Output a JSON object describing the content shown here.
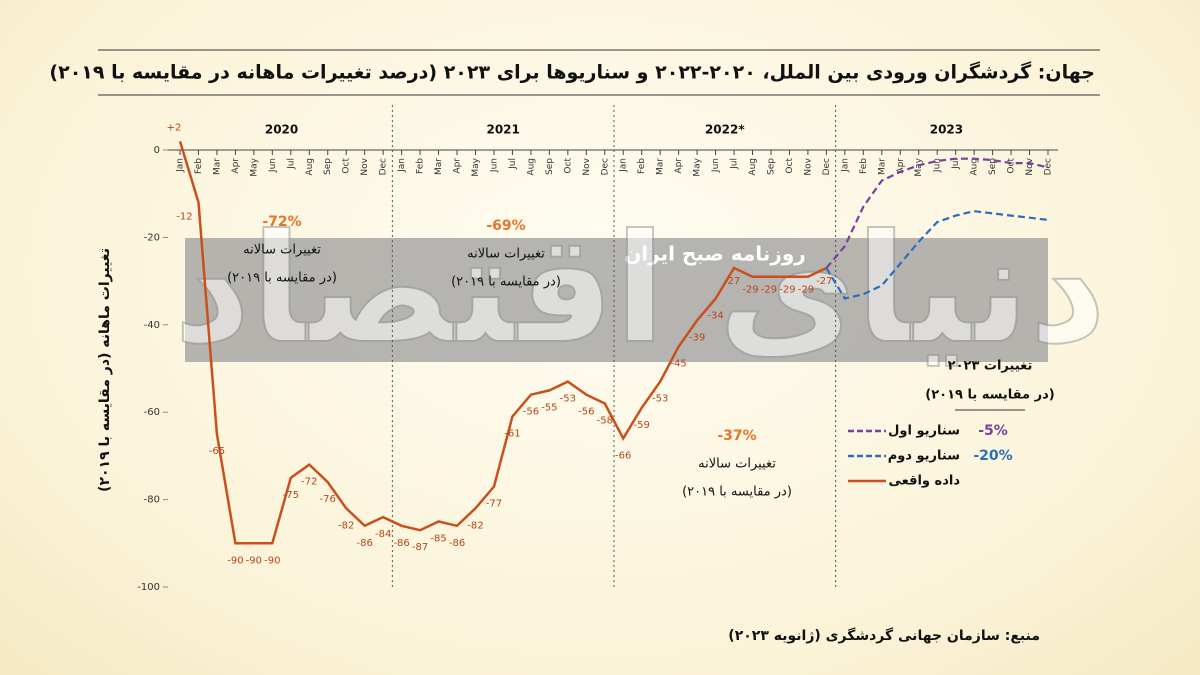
{
  "chart_data": {
    "type": "line",
    "title": "جهان: گردشگران ورودی بین الملل، ۲۰۲۰-۲۰۲۲ و سناریوها برای ۲۰۲۳ (درصد تغییرات ماهانه در مقایسه با ۲۰۱۹)",
    "y_label": "تغییرات ماهانه (در مقایسه با ۲۰۱۹)",
    "years": [
      "2020",
      "2021",
      "2022*",
      "2023"
    ],
    "categories": [
      "Jan",
      "Feb",
      "Mar",
      "Apr",
      "May",
      "Jun",
      "Jul",
      "Aug",
      "Sep",
      "Oct",
      "Nov",
      "Dec",
      "Jan",
      "Feb",
      "Mar",
      "Apr",
      "May",
      "Jun",
      "Jul",
      "Aug",
      "Sep",
      "Oct",
      "Nov",
      "Dec",
      "Jan",
      "Feb",
      "Mar",
      "Apr",
      "May",
      "Jun",
      "Jul",
      "Aug",
      "Sep",
      "Oct",
      "Nov",
      "Dec",
      "Jan",
      "Feb",
      "Mar",
      "Apr",
      "May",
      "Jun",
      "Jul",
      "Aug",
      "Sep",
      "Oct",
      "Nov",
      "Dec"
    ],
    "ylim": [
      -100,
      0
    ],
    "yticks": [
      0,
      -20,
      -40,
      -60,
      -80,
      -100
    ],
    "grid": false,
    "series": [
      {
        "name": "داده واقعی",
        "color": "#c9501c",
        "dash": "solid",
        "values": [
          2,
          -12,
          -65,
          -90,
          -90,
          -90,
          -75,
          -72,
          -76,
          -82,
          -86,
          -84,
          -86,
          -87,
          -85,
          -86,
          -82,
          -77,
          -61,
          -56,
          -55,
          -53,
          -56,
          -58,
          -66,
          -59,
          -53,
          -45,
          -39,
          -34,
          -27,
          -29,
          -29,
          -29,
          -29,
          -27,
          null,
          null,
          null,
          null,
          null,
          null,
          null,
          null,
          null,
          null,
          null,
          null
        ],
        "value_labels": [
          "+2",
          "-12",
          "-65",
          "-90",
          "-90",
          "-90",
          "-75",
          "-72",
          "-76",
          "-82",
          "-86",
          "-84",
          "-86",
          "-87",
          "-85",
          "-86",
          "-82",
          "-77",
          "-61",
          "-56",
          "-55",
          "-53",
          "-56",
          "-58",
          "-66",
          "-59",
          "-53",
          "-45",
          "-39",
          "-34",
          "-27",
          "-29",
          "-29",
          "-29",
          "-29",
          "-27",
          null,
          null,
          null,
          null,
          null,
          null,
          null,
          null,
          null,
          null,
          null,
          null
        ]
      },
      {
        "name": "سناریو اول",
        "color": "#7b3fa0",
        "dash": "dashed",
        "annual_change": "-5%",
        "values": [
          null,
          null,
          null,
          null,
          null,
          null,
          null,
          null,
          null,
          null,
          null,
          null,
          null,
          null,
          null,
          null,
          null,
          null,
          null,
          null,
          null,
          null,
          null,
          null,
          null,
          null,
          null,
          null,
          null,
          null,
          null,
          null,
          null,
          null,
          null,
          -27,
          -22,
          -13,
          -7,
          -5,
          -3.5,
          -2.5,
          -2,
          -2,
          -2.3,
          -3,
          -3,
          -4
        ]
      },
      {
        "name": "سناریو دوم",
        "color": "#2a6ebb",
        "dash": "dashed",
        "annual_change": "-20%",
        "values": [
          null,
          null,
          null,
          null,
          null,
          null,
          null,
          null,
          null,
          null,
          null,
          null,
          null,
          null,
          null,
          null,
          null,
          null,
          null,
          null,
          null,
          null,
          null,
          null,
          null,
          null,
          null,
          null,
          null,
          null,
          null,
          null,
          null,
          null,
          null,
          -27,
          -34,
          -33,
          -31,
          -26,
          -21,
          -16.5,
          -15,
          -14,
          -14.5,
          -15,
          -15.5,
          -16
        ]
      }
    ],
    "legend_title": [
      "تغییرات ۲۰۲۳",
      "(در مقایسه با ۲۰۱۹)"
    ],
    "annotations": [
      {
        "pct": "-72%",
        "lines": [
          "تغییرات سالانه",
          "(در مقایسه با ۲۰۱۹)"
        ]
      },
      {
        "pct": "-69%",
        "lines": [
          "تغییرات سالانه",
          "(در مقایسه با ۲۰۱۹)"
        ]
      },
      {
        "pct": "-37%",
        "lines": [
          "تغییرات سالانه",
          "(در مقایسه با ۲۰۱۹)"
        ]
      }
    ],
    "watermark": [
      "روزنامه صبح ایران",
      "دنیای اقتصاد"
    ],
    "source": "منبع: سازمان جهانی گردشگری (ژانویه ۲۰۲۳)"
  }
}
